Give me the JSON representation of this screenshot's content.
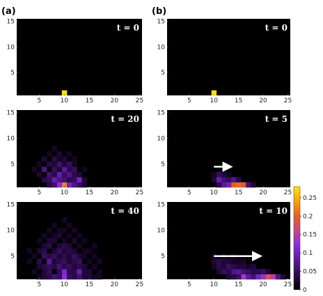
{
  "panel_labels": [
    "(a)",
    "(b)"
  ],
  "colors": {
    "background": "#000000",
    "arrow": "#ffffff",
    "colormap": [
      "#000000",
      "#2a0a4a",
      "#5a1a9a",
      "#8a2be2",
      "#c8458a",
      "#e8601e",
      "#f5a30a",
      "#ffe600"
    ]
  },
  "chart_data": [
    {
      "type": "heatmap",
      "panel": "(a)",
      "label": "t = 0",
      "xlim": [
        0.5,
        25.5
      ],
      "ylim": [
        0.5,
        15.5
      ],
      "xticks": [
        5,
        10,
        15,
        20,
        25
      ],
      "yticks": [
        5,
        10,
        15
      ],
      "cells": [
        [
          10,
          1,
          0.28
        ]
      ]
    },
    {
      "type": "heatmap",
      "panel": "(b)",
      "label": "t = 0",
      "xlim": [
        0.5,
        25.5
      ],
      "ylim": [
        0.5,
        15.5
      ],
      "xticks": [
        5,
        10,
        15,
        20,
        25
      ],
      "yticks": [
        5,
        10,
        15
      ],
      "cells": [
        [
          10,
          1,
          0.28
        ]
      ]
    },
    {
      "type": "heatmap",
      "panel": "(a)",
      "label": "t = 20",
      "xlim": [
        0.5,
        25.5
      ],
      "ylim": [
        0.5,
        15.5
      ],
      "xticks": [
        5,
        10,
        15,
        20,
        25
      ],
      "yticks": [
        5,
        10,
        15
      ],
      "cells": [
        [
          10,
          1,
          0.22
        ],
        [
          9,
          1,
          0.12
        ],
        [
          11,
          1,
          0.1
        ],
        [
          8,
          1,
          0.06
        ],
        [
          12,
          1,
          0.07
        ],
        [
          7,
          1,
          0.04
        ],
        [
          13,
          1,
          0.05
        ],
        [
          14,
          1,
          0.03
        ],
        [
          8,
          2,
          0.09
        ],
        [
          9,
          2,
          0.07
        ],
        [
          10,
          2,
          0.06
        ],
        [
          11,
          2,
          0.04
        ],
        [
          12,
          2,
          0.05
        ],
        [
          13,
          2,
          0.1
        ],
        [
          6,
          2,
          0.04
        ],
        [
          7,
          2,
          0.05
        ],
        [
          14,
          2,
          0.03
        ],
        [
          7,
          3,
          0.06
        ],
        [
          9,
          3,
          0.09
        ],
        [
          10,
          3,
          0.05
        ],
        [
          11,
          3,
          0.07
        ],
        [
          12,
          3,
          0.04
        ],
        [
          5,
          3,
          0.03
        ],
        [
          13,
          3,
          0.03
        ],
        [
          8,
          3,
          0.04
        ],
        [
          6,
          4,
          0.07
        ],
        [
          8,
          4,
          0.05
        ],
        [
          10,
          4,
          0.08
        ],
        [
          11,
          4,
          0.04
        ],
        [
          12,
          4,
          0.05
        ],
        [
          4,
          4,
          0.02
        ],
        [
          14,
          4,
          0.02
        ],
        [
          9,
          4,
          0.03
        ],
        [
          7,
          5,
          0.04
        ],
        [
          9,
          5,
          0.06
        ],
        [
          10,
          5,
          0.03
        ],
        [
          11,
          5,
          0.05
        ],
        [
          5,
          5,
          0.02
        ],
        [
          8,
          5,
          0.03
        ],
        [
          12,
          5,
          0.02
        ],
        [
          6,
          6,
          0.03
        ],
        [
          8,
          6,
          0.04
        ],
        [
          9,
          6,
          0.02
        ],
        [
          10,
          6,
          0.03
        ],
        [
          12,
          6,
          0.02
        ],
        [
          7,
          7,
          0.02
        ],
        [
          9,
          7,
          0.03
        ],
        [
          11,
          7,
          0.02
        ],
        [
          8,
          8,
          0.02
        ]
      ]
    },
    {
      "type": "heatmap",
      "panel": "(b)",
      "label": "t = 5",
      "xlim": [
        0.5,
        25.5
      ],
      "ylim": [
        0.5,
        15.5
      ],
      "xticks": [
        5,
        10,
        15,
        20,
        25
      ],
      "yticks": [
        5,
        10,
        15
      ],
      "cells": [
        [
          14,
          1,
          0.2
        ],
        [
          15,
          1,
          0.21
        ],
        [
          16,
          1,
          0.19
        ],
        [
          13,
          1,
          0.1
        ],
        [
          12,
          1,
          0.08
        ],
        [
          17,
          1,
          0.06
        ],
        [
          11,
          1,
          0.04
        ],
        [
          18,
          1,
          0.03
        ],
        [
          11,
          2,
          0.09
        ],
        [
          12,
          2,
          0.06
        ],
        [
          13,
          2,
          0.05
        ],
        [
          14,
          2,
          0.07
        ],
        [
          10,
          2,
          0.03
        ],
        [
          15,
          2,
          0.04
        ],
        [
          11,
          3,
          0.05
        ],
        [
          12,
          3,
          0.03
        ],
        [
          13,
          3,
          0.02
        ],
        [
          10,
          3,
          0.02
        ]
      ],
      "arrow": {
        "from": [
          10,
          4.5
        ],
        "to": [
          14,
          4.5
        ]
      }
    },
    {
      "type": "heatmap",
      "panel": "(a)",
      "label": "t = 40",
      "xlim": [
        0.5,
        25.5
      ],
      "ylim": [
        0.5,
        15.5
      ],
      "xticks": [
        5,
        10,
        15,
        20,
        25
      ],
      "yticks": [
        5,
        10,
        15
      ],
      "cells": [
        [
          10,
          1,
          0.12
        ],
        [
          8,
          1,
          0.06
        ],
        [
          9,
          1,
          0.05
        ],
        [
          11,
          1,
          0.05
        ],
        [
          12,
          1,
          0.04
        ],
        [
          13,
          1,
          0.06
        ],
        [
          14,
          1,
          0.03
        ],
        [
          6,
          1,
          0.03
        ],
        [
          7,
          1,
          0.04
        ],
        [
          15,
          1,
          0.03
        ],
        [
          16,
          1,
          0.02
        ],
        [
          17,
          1,
          0.02
        ],
        [
          5,
          1,
          0.02
        ],
        [
          10,
          2,
          0.11
        ],
        [
          9,
          2,
          0.05
        ],
        [
          11,
          2,
          0.04
        ],
        [
          12,
          2,
          0.04
        ],
        [
          13,
          2,
          0.09
        ],
        [
          7,
          2,
          0.05
        ],
        [
          6,
          2,
          0.03
        ],
        [
          14,
          2,
          0.03
        ],
        [
          15,
          2,
          0.03
        ],
        [
          4,
          2,
          0.02
        ],
        [
          17,
          2,
          0.02
        ],
        [
          6,
          3,
          0.04
        ],
        [
          7,
          3,
          0.05
        ],
        [
          8,
          3,
          0.04
        ],
        [
          9,
          3,
          0.06
        ],
        [
          10,
          3,
          0.04
        ],
        [
          11,
          3,
          0.05
        ],
        [
          12,
          3,
          0.03
        ],
        [
          13,
          3,
          0.04
        ],
        [
          14,
          3,
          0.03
        ],
        [
          5,
          3,
          0.03
        ],
        [
          16,
          3,
          0.02
        ],
        [
          7,
          4,
          0.08
        ],
        [
          5,
          4,
          0.04
        ],
        [
          8,
          4,
          0.03
        ],
        [
          9,
          4,
          0.04
        ],
        [
          10,
          4,
          0.05
        ],
        [
          11,
          4,
          0.03
        ],
        [
          12,
          4,
          0.04
        ],
        [
          13,
          4,
          0.05
        ],
        [
          15,
          4,
          0.02
        ],
        [
          3,
          4,
          0.02
        ],
        [
          17,
          4,
          0.02
        ],
        [
          6,
          5,
          0.05
        ],
        [
          7,
          5,
          0.04
        ],
        [
          8,
          5,
          0.05
        ],
        [
          9,
          5,
          0.03
        ],
        [
          10,
          5,
          0.04
        ],
        [
          11,
          5,
          0.03
        ],
        [
          12,
          5,
          0.05
        ],
        [
          13,
          5,
          0.03
        ],
        [
          14,
          5,
          0.02
        ],
        [
          16,
          5,
          0.02
        ],
        [
          4,
          5,
          0.02
        ],
        [
          5,
          6,
          0.03
        ],
        [
          6,
          6,
          0.04
        ],
        [
          8,
          6,
          0.03
        ],
        [
          9,
          6,
          0.05
        ],
        [
          10,
          6,
          0.03
        ],
        [
          11,
          6,
          0.04
        ],
        [
          12,
          6,
          0.03
        ],
        [
          14,
          6,
          0.02
        ],
        [
          15,
          6,
          0.02
        ],
        [
          3,
          6,
          0.02
        ],
        [
          6,
          7,
          0.03
        ],
        [
          7,
          7,
          0.04
        ],
        [
          9,
          7,
          0.03
        ],
        [
          10,
          7,
          0.04
        ],
        [
          11,
          7,
          0.03
        ],
        [
          13,
          7,
          0.02
        ],
        [
          16,
          7,
          0.02
        ],
        [
          5,
          8,
          0.02
        ],
        [
          7,
          8,
          0.03
        ],
        [
          8,
          8,
          0.03
        ],
        [
          10,
          8,
          0.02
        ],
        [
          12,
          8,
          0.03
        ],
        [
          14,
          8,
          0.02
        ],
        [
          6,
          9,
          0.02
        ],
        [
          8,
          9,
          0.02
        ],
        [
          9,
          9,
          0.03
        ],
        [
          11,
          9,
          0.02
        ],
        [
          13,
          9,
          0.02
        ],
        [
          7,
          10,
          0.02
        ],
        [
          9,
          10,
          0.02
        ],
        [
          10,
          10,
          0.02
        ],
        [
          12,
          10,
          0.02
        ],
        [
          8,
          11,
          0.02
        ],
        [
          11,
          11,
          0.02
        ],
        [
          10,
          12,
          0.02
        ]
      ]
    },
    {
      "type": "heatmap",
      "panel": "(b)",
      "label": "t = 10",
      "xlim": [
        0.5,
        25.5
      ],
      "ylim": [
        0.5,
        15.5
      ],
      "xticks": [
        5,
        10,
        15,
        20,
        25
      ],
      "yticks": [
        5,
        10,
        15
      ],
      "cells": [
        [
          16,
          1,
          0.14
        ],
        [
          17,
          1,
          0.08
        ],
        [
          18,
          1,
          0.06
        ],
        [
          19,
          1,
          0.1
        ],
        [
          20,
          1,
          0.13
        ],
        [
          21,
          1,
          0.18
        ],
        [
          22,
          1,
          0.15
        ],
        [
          23,
          1,
          0.07
        ],
        [
          15,
          1,
          0.05
        ],
        [
          14,
          1,
          0.04
        ],
        [
          24,
          1,
          0.03
        ],
        [
          13,
          1,
          0.03
        ],
        [
          14,
          2,
          0.07
        ],
        [
          15,
          2,
          0.08
        ],
        [
          16,
          2,
          0.06
        ],
        [
          17,
          2,
          0.05
        ],
        [
          18,
          2,
          0.04
        ],
        [
          13,
          2,
          0.04
        ],
        [
          12,
          2,
          0.05
        ],
        [
          19,
          2,
          0.04
        ],
        [
          20,
          2,
          0.05
        ],
        [
          21,
          2,
          0.03
        ],
        [
          11,
          2,
          0.03
        ],
        [
          11,
          3,
          0.04
        ],
        [
          12,
          3,
          0.03
        ],
        [
          13,
          3,
          0.05
        ],
        [
          14,
          3,
          0.04
        ],
        [
          15,
          3,
          0.03
        ],
        [
          16,
          3,
          0.03
        ],
        [
          17,
          3,
          0.02
        ],
        [
          18,
          3,
          0.03
        ],
        [
          10,
          3,
          0.02
        ],
        [
          10,
          4,
          0.03
        ],
        [
          11,
          4,
          0.04
        ],
        [
          12,
          4,
          0.03
        ],
        [
          13,
          4,
          0.03
        ],
        [
          14,
          4,
          0.02
        ],
        [
          15,
          4,
          0.02
        ],
        [
          16,
          4,
          0.02
        ],
        [
          10,
          5,
          0.02
        ],
        [
          12,
          5,
          0.02
        ],
        [
          14,
          5,
          0.02
        ]
      ],
      "arrow": {
        "from": [
          10,
          5
        ],
        "to": [
          20,
          5
        ]
      }
    }
  ],
  "colorbar": {
    "range": [
      0,
      0.28
    ],
    "ticks": [
      "0",
      "0.05",
      "0.1",
      "0.15",
      "0.2",
      "0.25"
    ]
  }
}
